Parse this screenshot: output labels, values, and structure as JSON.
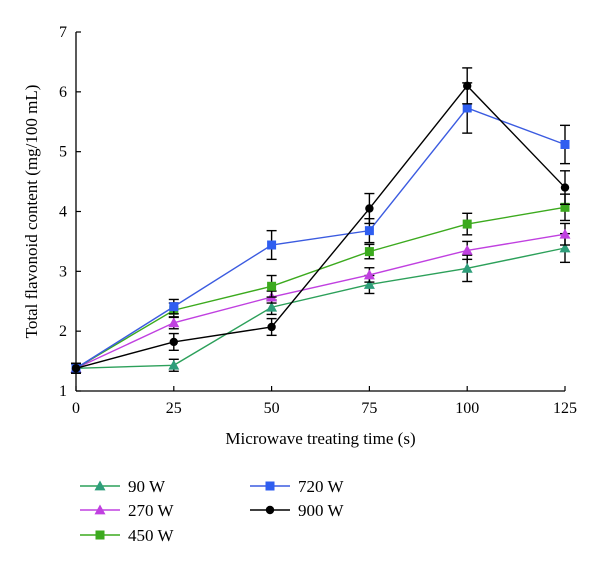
{
  "chart_data": {
    "type": "line",
    "xlabel": "Microwave treating time (s)",
    "ylabel": "Total flavonoid content (mg/100 mL)",
    "x": [
      0,
      25,
      50,
      75,
      100,
      125
    ],
    "xlim": [
      0,
      125
    ],
    "ylim": [
      1,
      7
    ],
    "xticks": [
      "0",
      "25",
      "50",
      "75",
      "100",
      "125"
    ],
    "yticks": [
      "1",
      "2",
      "3",
      "4",
      "5",
      "6",
      "7"
    ],
    "grid": false,
    "legend_position": "bottom-left",
    "series": [
      {
        "name": "90 W",
        "marker": "triangle",
        "color": "#2ca05a",
        "marker_color": "#2e9e7a",
        "values": [
          1.38,
          1.43,
          2.4,
          2.78,
          3.05,
          3.39
        ],
        "errors": [
          0.08,
          0.1,
          0.12,
          0.15,
          0.22,
          0.24
        ]
      },
      {
        "name": "270 W",
        "marker": "triangle",
        "color": "#c040e0",
        "marker_color": "#c040e0",
        "values": [
          1.38,
          2.14,
          2.57,
          2.94,
          3.35,
          3.62
        ],
        "errors": [
          0.08,
          0.1,
          0.1,
          0.12,
          0.15,
          0.18
        ]
      },
      {
        "name": "450 W",
        "marker": "square",
        "color": "#3caa1e",
        "marker_color": "#3caa1e",
        "values": [
          1.38,
          2.35,
          2.75,
          3.33,
          3.79,
          4.07
        ],
        "errors": [
          0.08,
          0.12,
          0.18,
          0.12,
          0.18,
          0.22
        ]
      },
      {
        "name": "720 W",
        "marker": "square",
        "color": "#3b5be0",
        "marker_color": "#2f5ef0",
        "values": [
          1.38,
          2.41,
          3.44,
          3.68,
          5.73,
          5.12
        ],
        "errors": [
          0.08,
          0.12,
          0.24,
          0.2,
          0.42,
          0.32
        ]
      },
      {
        "name": "900 W",
        "marker": "circle",
        "color": "#000000",
        "marker_color": "#000000",
        "values": [
          1.38,
          1.82,
          2.07,
          4.05,
          6.1,
          4.4
        ],
        "errors": [
          0.08,
          0.14,
          0.14,
          0.25,
          0.3,
          0.28
        ]
      }
    ]
  }
}
